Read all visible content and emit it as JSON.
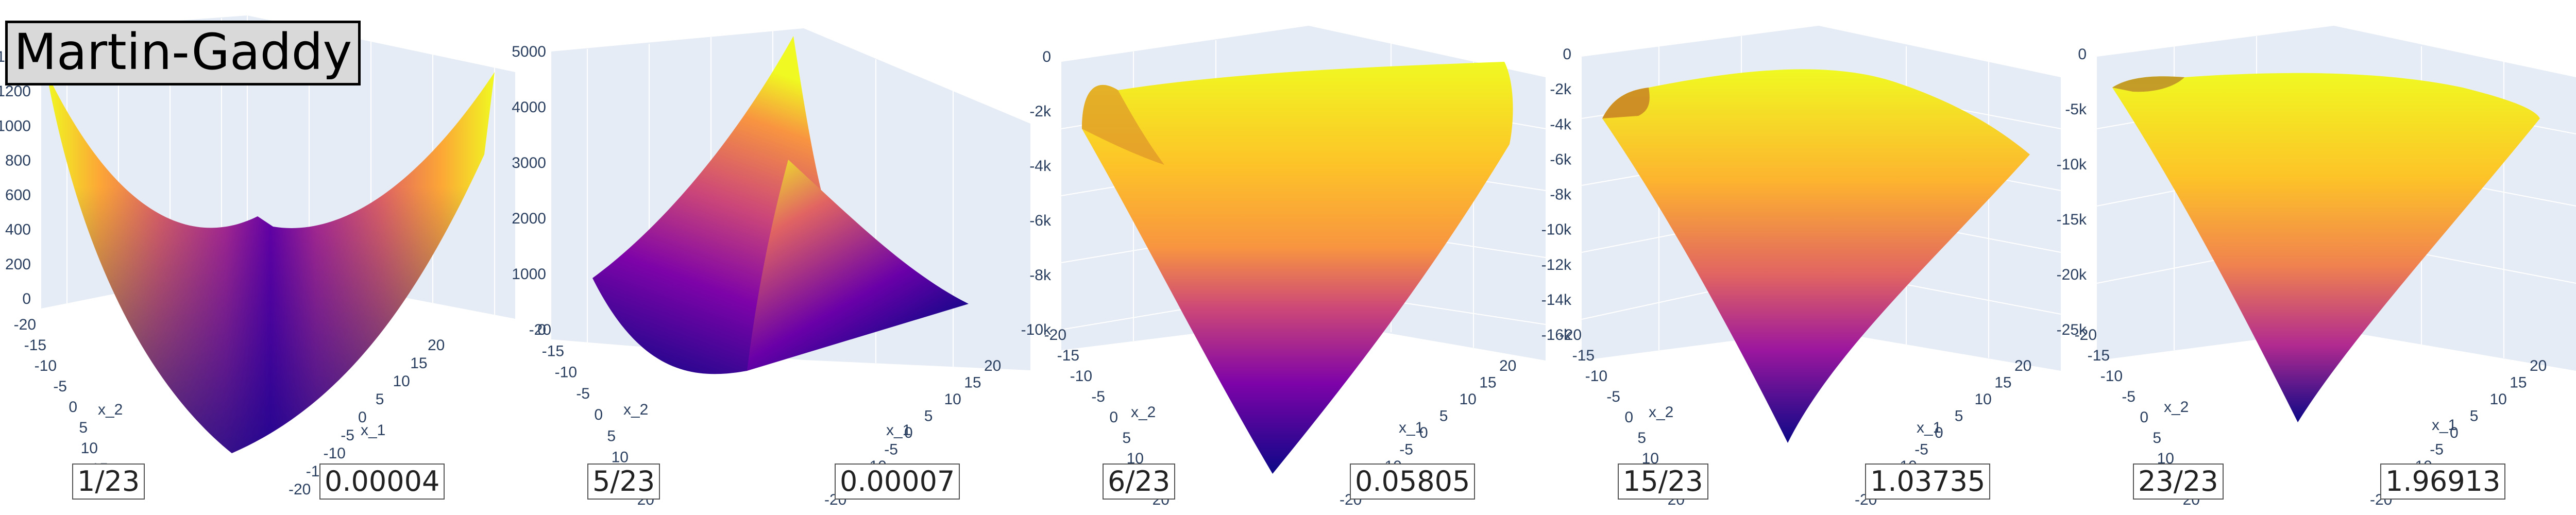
{
  "title": "Martin-Gaddy",
  "chart_data": [
    {
      "type": "surface",
      "step_label": "1/23",
      "param_label": "0.00004",
      "xlabel": "x_1",
      "ylabel": "x_2",
      "x_ticks": [
        "-20",
        "-15",
        "-10",
        "-5",
        "0",
        "5",
        "10",
        "15",
        "20"
      ],
      "y_ticks": [
        "-20",
        "-15",
        "-10",
        "-5",
        "0",
        "5",
        "10",
        "15",
        "20"
      ],
      "z_ticks": [
        "0",
        "200",
        "400",
        "600",
        "800",
        "1000",
        "1200",
        "1400"
      ],
      "zlim": [
        0,
        1500
      ],
      "colorscale": "plasma",
      "shape": "valley",
      "colors": {
        "low": "#0d0887",
        "high": "#f0f921",
        "grid_bg": "#e5ecf6"
      }
    },
    {
      "type": "surface",
      "step_label": "5/23",
      "param_label": "0.00007",
      "xlabel": "x_1",
      "ylabel": "x_2",
      "x_ticks": [
        "-20",
        "-15",
        "-10",
        "-5",
        "0",
        "5",
        "10",
        "15",
        "20"
      ],
      "y_ticks": [
        "-20",
        "-15",
        "-10",
        "-5",
        "0",
        "5",
        "10",
        "15",
        "20"
      ],
      "z_ticks": [
        "0",
        "1000",
        "2000",
        "3000",
        "4000",
        "5000"
      ],
      "zlim": [
        0,
        5000
      ],
      "colorscale": "plasma",
      "shape": "folded",
      "colors": {
        "low": "#0d0887",
        "high": "#f0f921",
        "grid_bg": "#e5ecf6"
      }
    },
    {
      "type": "surface",
      "step_label": "6/23",
      "param_label": "0.05805",
      "xlabel": "x_1",
      "ylabel": "x_2",
      "x_ticks": [
        "-20",
        "-15",
        "-10",
        "-5",
        "0",
        "5",
        "10",
        "15",
        "20"
      ],
      "y_ticks": [
        "-20",
        "-15",
        "-10",
        "-5",
        "0",
        "5",
        "10",
        "15",
        "20"
      ],
      "z_ticks": [
        "0",
        "-2k",
        "-4k",
        "-6k",
        "-8k",
        "-10k"
      ],
      "zlim": [
        -10000,
        0
      ],
      "colorscale": "plasma",
      "shape": "dome",
      "colors": {
        "low": "#0d0887",
        "high": "#f0f921",
        "grid_bg": "#e5ecf6"
      }
    },
    {
      "type": "surface",
      "step_label": "15/23",
      "param_label": "1.03735",
      "xlabel": "x_1",
      "ylabel": "x_2",
      "x_ticks": [
        "-20",
        "-15",
        "-10",
        "-5",
        "0",
        "5",
        "10",
        "15",
        "20"
      ],
      "y_ticks": [
        "-20",
        "-15",
        "-10",
        "-5",
        "0",
        "5",
        "10",
        "15",
        "20"
      ],
      "z_ticks": [
        "0",
        "-2k",
        "-4k",
        "-6k",
        "-8k",
        "-10k",
        "-12k",
        "-14k",
        "-16k"
      ],
      "zlim": [
        -16000,
        0
      ],
      "colorscale": "plasma",
      "shape": "dome",
      "colors": {
        "low": "#0d0887",
        "high": "#f0f921",
        "grid_bg": "#e5ecf6"
      }
    },
    {
      "type": "surface",
      "step_label": "23/23",
      "param_label": "1.96913",
      "xlabel": "x_1",
      "ylabel": "x_2",
      "x_ticks": [
        "-20",
        "-15",
        "-10",
        "-5",
        "0",
        "5",
        "10",
        "15",
        "20"
      ],
      "y_ticks": [
        "-20",
        "-15",
        "-10",
        "-5",
        "0",
        "5",
        "10",
        "15",
        "20"
      ],
      "z_ticks": [
        "0",
        "-5k",
        "-10k",
        "-15k",
        "-20k",
        "-25k"
      ],
      "zlim": [
        -25000,
        0
      ],
      "colorscale": "plasma",
      "shape": "dome",
      "colors": {
        "low": "#0d0887",
        "high": "#f0f921",
        "grid_bg": "#e5ecf6"
      }
    }
  ]
}
